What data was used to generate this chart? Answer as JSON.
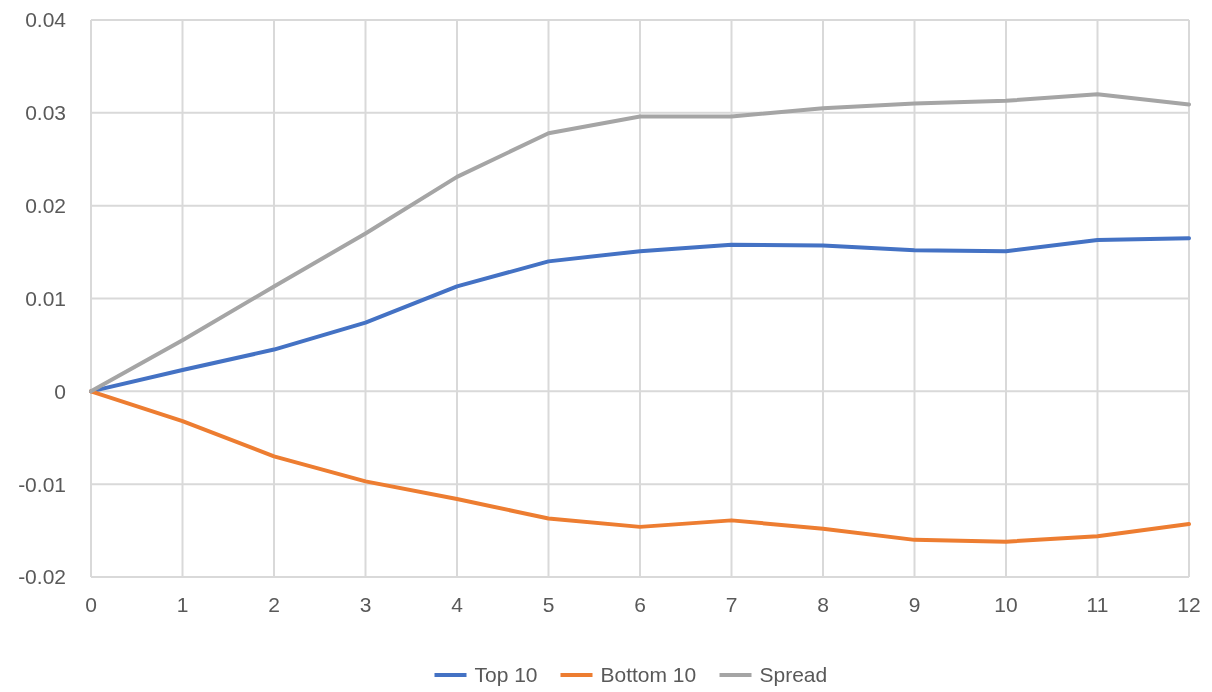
{
  "chart_data": {
    "type": "line",
    "x": [
      0,
      1,
      2,
      3,
      4,
      5,
      6,
      7,
      8,
      9,
      10,
      11,
      12
    ],
    "xlim": [
      0,
      12
    ],
    "xticks": [
      0,
      1,
      2,
      3,
      4,
      5,
      6,
      7,
      8,
      9,
      10,
      11,
      12
    ],
    "ylim": [
      -0.02,
      0.04
    ],
    "yticks": [
      -0.02,
      -0.01,
      0,
      0.01,
      0.02,
      0.03,
      0.04
    ],
    "grid": true,
    "legend": "bottom",
    "marker": "none",
    "line_style": "solid",
    "series": [
      {
        "name": "Top 10",
        "color": "#4472c4",
        "values": [
          0,
          0.0023,
          0.0045,
          0.0074,
          0.0113,
          0.014,
          0.0151,
          0.0158,
          0.0157,
          0.0152,
          0.0151,
          0.0163,
          0.0165
        ]
      },
      {
        "name": "Bottom 10",
        "color": "#ed7d31",
        "values": [
          0,
          -0.0032,
          -0.007,
          -0.0097,
          -0.0116,
          -0.0137,
          -0.0146,
          -0.0139,
          -0.0148,
          -0.016,
          -0.0162,
          -0.0156,
          -0.0143
        ]
      },
      {
        "name": "Spread",
        "color": "#a5a5a5",
        "values": [
          0,
          0.0055,
          0.0113,
          0.017,
          0.0231,
          0.0278,
          0.0296,
          0.0296,
          0.0305,
          0.031,
          0.0313,
          0.032,
          0.0309
        ]
      }
    ]
  }
}
